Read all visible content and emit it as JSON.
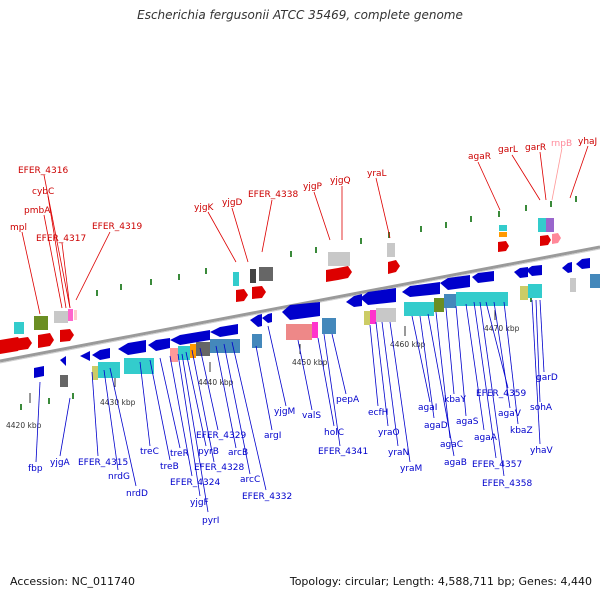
{
  "title": "Escherichia fergusonii ATCC 35469, complete genome",
  "accession": "Accession: NC_011740",
  "genome_info": "Topology: circular; Length: 4,588,711 bp; Genes: 4,440",
  "colors": {
    "plus_strand": "#dd0000",
    "minus_strand": "#0000cc",
    "rna": "#ff8899",
    "backbone": "#888888"
  },
  "ticks": [
    "4420 kbp",
    "4430 kbp",
    "4440 kbp",
    "4450 kbp",
    "4460 kbp",
    "4470 kbp"
  ],
  "labels_top": [
    "EFER_4316",
    "cybC",
    "pmbA",
    "mpl",
    "EFER_4317",
    "EFER_4319",
    "yjgK",
    "yjgD",
    "EFER_4338",
    "yjgP",
    "yjgQ",
    "yraL",
    "agaR",
    "garL",
    "garR",
    "rnpB",
    "yhaJ"
  ],
  "labels_bottom": [
    "fbp",
    "yjgA",
    "EFER_4315",
    "nrdG",
    "nrdD",
    "treC",
    "treB",
    "treR",
    "EFER_4324",
    "yjgF",
    "pyrI",
    "pyrB",
    "EFER_4328",
    "EFER_4329",
    "arcB",
    "arcC",
    "EFER_4332",
    "argI",
    "yjgM",
    "valS",
    "holC",
    "EFER_4341",
    "pepA",
    "ecfH",
    "yraO",
    "yraN",
    "yraM",
    "agaI",
    "agaD",
    "agaB",
    "agaC",
    "kbaY",
    "agaS",
    "agaA",
    "EFER_4357",
    "EFER_4358",
    "EFER_4359",
    "agaV",
    "kbaZ",
    "yhaV",
    "sohA",
    "garD"
  ]
}
